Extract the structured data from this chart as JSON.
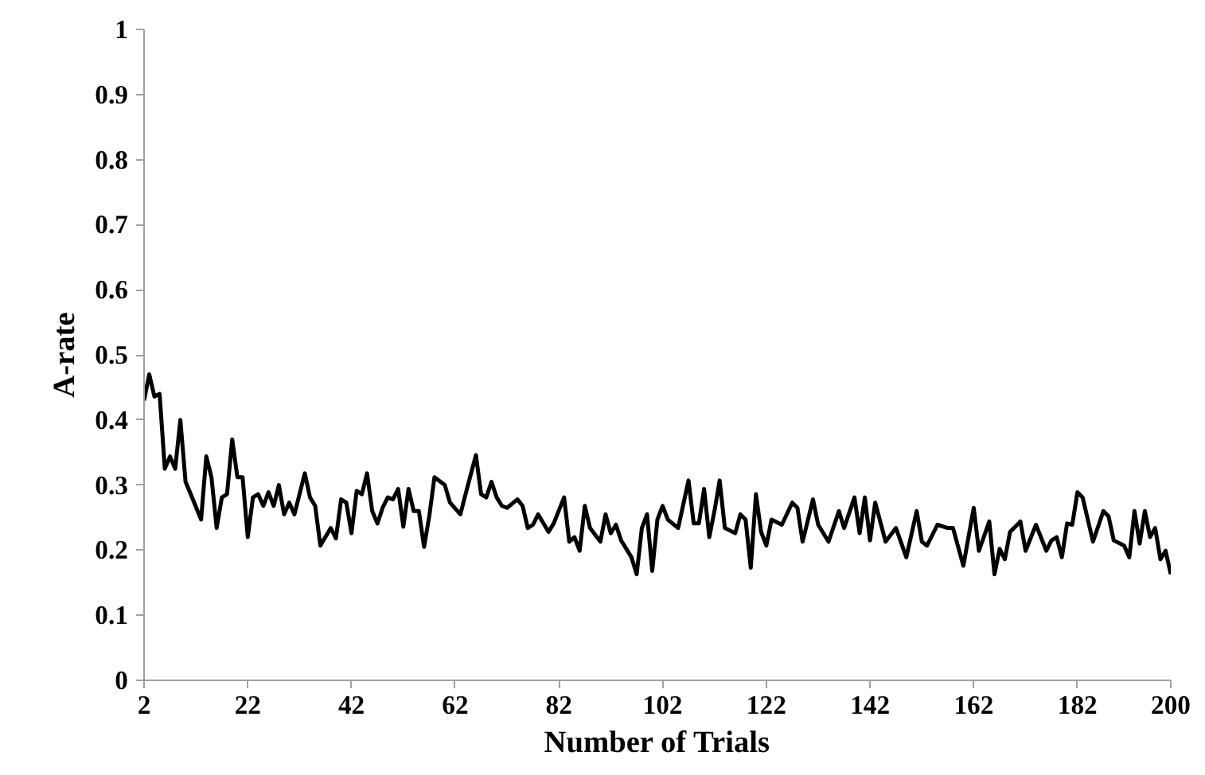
{
  "chart_data": {
    "type": "line",
    "xlabel": "Number of Trials",
    "ylabel": "A-rate",
    "xlim": [
      2,
      200
    ],
    "xticks": [
      2,
      22,
      42,
      62,
      82,
      102,
      122,
      142,
      162,
      182,
      200
    ],
    "ylim": [
      0,
      1
    ],
    "yticks": [
      0,
      0.1,
      0.2,
      0.3,
      0.4,
      0.5,
      0.6,
      0.7,
      0.8,
      0.9,
      1
    ],
    "grid": false,
    "marker": "none",
    "line_style": "solid",
    "series": [
      {
        "color": "#000000",
        "x": [
          2,
          3,
          4,
          5,
          6,
          7,
          8,
          9,
          10,
          11,
          13,
          14,
          15,
          16,
          17,
          18,
          19,
          20,
          21,
          22,
          23,
          24,
          25,
          26,
          27,
          28,
          29,
          30,
          31,
          33,
          34,
          35,
          36,
          38,
          39,
          40,
          41,
          42,
          43,
          44,
          45,
          46,
          47,
          48,
          49,
          50,
          51,
          52,
          53,
          54,
          55,
          56,
          57,
          58,
          60,
          61,
          63,
          64,
          66,
          67,
          68,
          69,
          70,
          71,
          72,
          74,
          75,
          76,
          77,
          78,
          80,
          81,
          83,
          84,
          85,
          86,
          87,
          88,
          90,
          91,
          92,
          93,
          94,
          96,
          97,
          98,
          99,
          100,
          101,
          102,
          103,
          105,
          107,
          108,
          109,
          110,
          111,
          112,
          113,
          114,
          116,
          117,
          118,
          119,
          120,
          121,
          122,
          123,
          125,
          127,
          128,
          129,
          131,
          132,
          134,
          136,
          137,
          139,
          140,
          141,
          142,
          143,
          145,
          147,
          149,
          151,
          152,
          153,
          155,
          157,
          158,
          160,
          162,
          163,
          165,
          166,
          167,
          168,
          169,
          171,
          172,
          174,
          176,
          177,
          178,
          179,
          180,
          181,
          182,
          183,
          185,
          187,
          188,
          189,
          191,
          192,
          193,
          194,
          195,
          196,
          197,
          198,
          199,
          200
        ],
        "values": [
          0.43,
          0.47,
          0.436,
          0.44,
          0.325,
          0.344,
          0.325,
          0.4,
          0.305,
          0.286,
          0.247,
          0.344,
          0.312,
          0.234,
          0.281,
          0.286,
          0.37,
          0.312,
          0.312,
          0.22,
          0.281,
          0.286,
          0.268,
          0.289,
          0.268,
          0.3,
          0.255,
          0.273,
          0.255,
          0.318,
          0.281,
          0.268,
          0.207,
          0.234,
          0.218,
          0.278,
          0.273,
          0.226,
          0.291,
          0.286,
          0.318,
          0.26,
          0.241,
          0.265,
          0.281,
          0.278,
          0.294,
          0.236,
          0.294,
          0.26,
          0.26,
          0.205,
          0.252,
          0.312,
          0.3,
          0.273,
          0.255,
          0.286,
          0.346,
          0.286,
          0.281,
          0.305,
          0.281,
          0.268,
          0.265,
          0.278,
          0.268,
          0.234,
          0.239,
          0.255,
          0.228,
          0.241,
          0.281,
          0.213,
          0.22,
          0.199,
          0.268,
          0.234,
          0.213,
          0.255,
          0.226,
          0.239,
          0.215,
          0.189,
          0.163,
          0.234,
          0.255,
          0.168,
          0.247,
          0.268,
          0.247,
          0.234,
          0.307,
          0.241,
          0.241,
          0.294,
          0.22,
          0.26,
          0.307,
          0.234,
          0.226,
          0.255,
          0.247,
          0.173,
          0.286,
          0.228,
          0.207,
          0.247,
          0.239,
          0.273,
          0.265,
          0.213,
          0.278,
          0.239,
          0.213,
          0.26,
          0.234,
          0.281,
          0.226,
          0.281,
          0.215,
          0.273,
          0.213,
          0.234,
          0.189,
          0.26,
          0.213,
          0.207,
          0.239,
          0.234,
          0.234,
          0.176,
          0.265,
          0.199,
          0.244,
          0.163,
          0.202,
          0.186,
          0.228,
          0.244,
          0.199,
          0.239,
          0.199,
          0.215,
          0.22,
          0.189,
          0.241,
          0.239,
          0.289,
          0.281,
          0.213,
          0.26,
          0.252,
          0.215,
          0.207,
          0.189,
          0.26,
          0.21,
          0.26,
          0.22,
          0.234,
          0.186,
          0.199,
          0.163
        ]
      }
    ]
  }
}
